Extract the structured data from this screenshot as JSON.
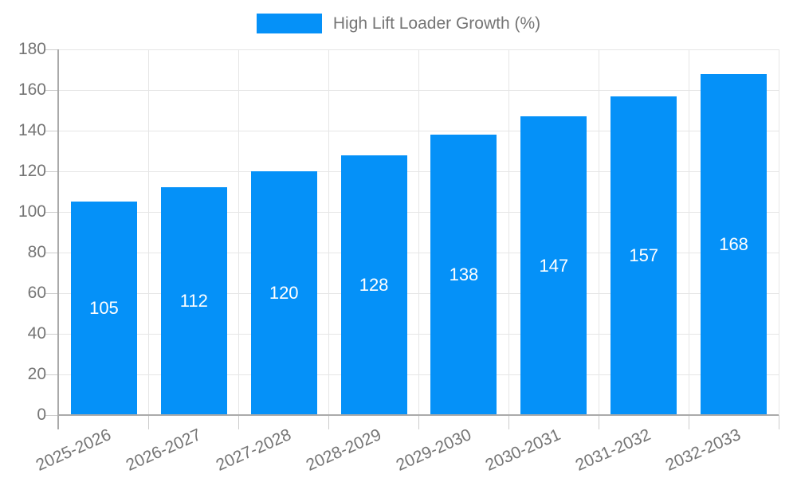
{
  "chart_data": {
    "type": "bar",
    "title": "High Lift Loader Growth (%)",
    "legend_position": "top",
    "categories": [
      "2025-2026",
      "2026-2027",
      "2027-2028",
      "2028-2029",
      "2029-2030",
      "2030-2031",
      "2031-2032",
      "2032-2033"
    ],
    "series": [
      {
        "name": "High Lift Loader Growth (%)",
        "values": [
          105,
          112,
          120,
          128,
          138,
          147,
          157,
          168
        ]
      }
    ],
    "value_labels": [
      105,
      112,
      120,
      128,
      138,
      147,
      157,
      168
    ],
    "xlabel": "",
    "ylabel": "",
    "ylim": [
      0,
      180
    ],
    "ytick_step": 20,
    "ytick_labels": [
      "0",
      "20",
      "40",
      "60",
      "80",
      "100",
      "120",
      "140",
      "160",
      "180"
    ],
    "grid": true,
    "colors": {
      "bar": "#0591f8",
      "gridline": "#e6e6e6",
      "axis": "#aaaaaa",
      "tick": "#cccccc",
      "axis_text": "#757575",
      "value_label_text": "#ffffff"
    }
  }
}
